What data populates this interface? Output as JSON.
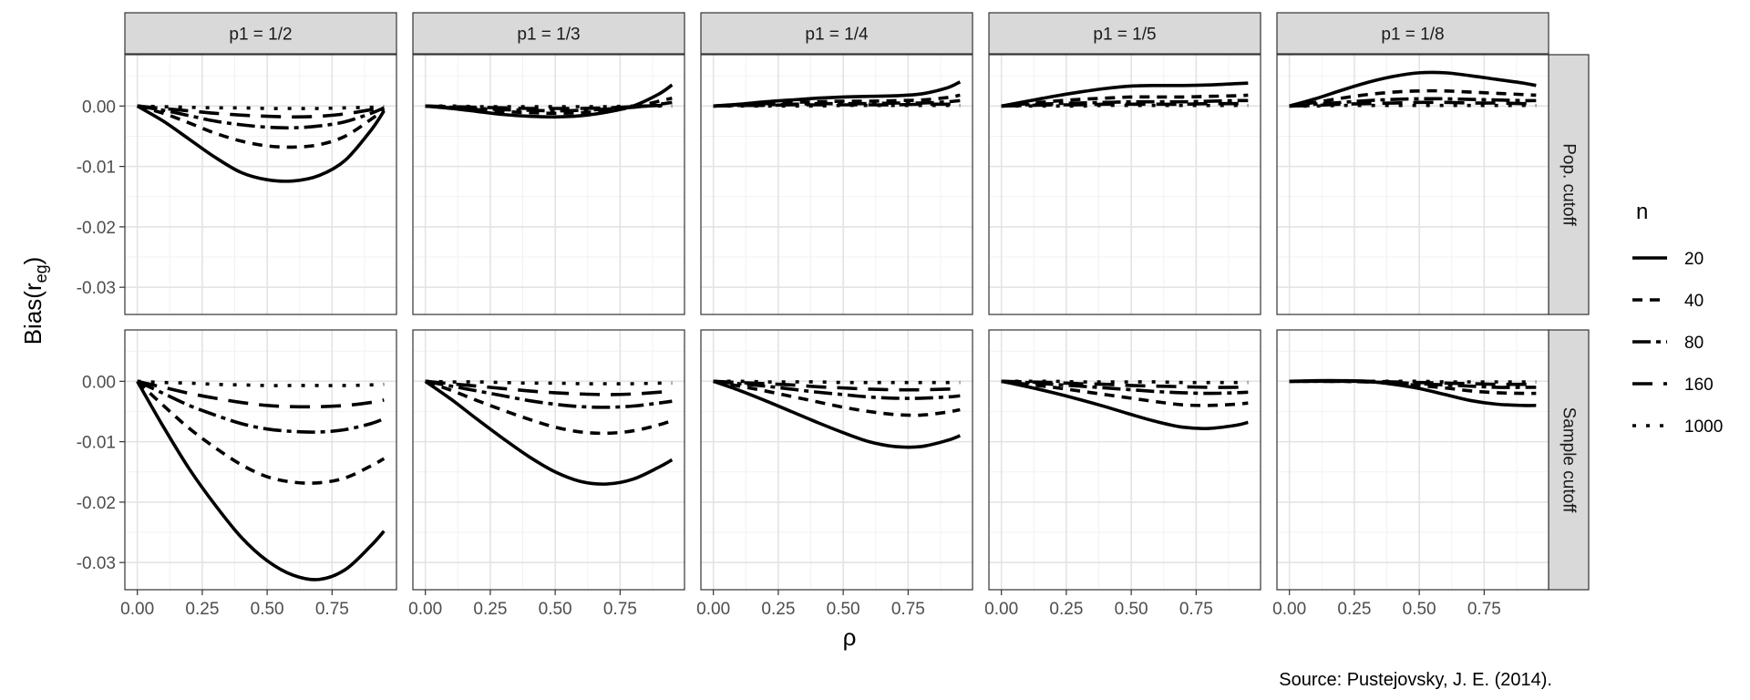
{
  "chart_data": {
    "type": "line",
    "xlabel": "ρ",
    "ylabel_main": "Bias(r",
    "ylabel_sub": "eg",
    "ylabel_close": ")",
    "caption": "Source: Pustejovsky, J. E. (2014).",
    "x_ticks": [
      0,
      0.25,
      0.5,
      0.75
    ],
    "x_tick_labels": [
      "0.00",
      "0.25",
      "0.50",
      "0.75"
    ],
    "y_ticks": [
      0,
      -0.01,
      -0.02,
      -0.03
    ],
    "y_tick_labels": [
      "0.00",
      "-0.01",
      "-0.02",
      "-0.03"
    ],
    "xlim": [
      -0.048,
      0.998
    ],
    "ylim_top": [
      -0.0345,
      0.0085
    ],
    "ylim_bottom": [
      -0.0345,
      0.0085
    ],
    "grid": true,
    "legend_position": "right",
    "legend": {
      "title": "n",
      "entries": [
        {
          "label": "20",
          "dash": "solid"
        },
        {
          "label": "40",
          "dash": "short-dash"
        },
        {
          "label": "80",
          "dash": "dash-dot"
        },
        {
          "label": "160",
          "dash": "long-dash"
        },
        {
          "label": "1000",
          "dash": "dotted"
        }
      ]
    },
    "columns": [
      "p1 = 1/2",
      "p1 = 1/3",
      "p1 = 1/4",
      "p1 = 1/5",
      "p1 = 1/8"
    ],
    "rows": [
      "Pop. cutoff",
      "Sample cutoff"
    ],
    "x": [
      0,
      0.1,
      0.2,
      0.3,
      0.4,
      0.5,
      0.6,
      0.7,
      0.8,
      0.9,
      0.95
    ],
    "panels": [
      {
        "row": "Pop. cutoff",
        "column": "p1 = 1/2",
        "series": [
          {
            "name": "20",
            "values": [
              0,
              -0.0025,
              -0.0055,
              -0.0085,
              -0.011,
              -0.0122,
              -0.0124,
              -0.0115,
              -0.009,
              -0.004,
              -0.0008
            ]
          },
          {
            "name": "40",
            "values": [
              0,
              -0.0012,
              -0.0028,
              -0.0045,
              -0.0058,
              -0.0066,
              -0.0068,
              -0.0064,
              -0.005,
              -0.0022,
              -0.0005
            ]
          },
          {
            "name": "80",
            "values": [
              0,
              -0.0007,
              -0.0016,
              -0.0025,
              -0.0031,
              -0.0035,
              -0.0036,
              -0.0033,
              -0.0026,
              -0.0012,
              -0.0003
            ]
          },
          {
            "name": "160",
            "values": [
              0,
              -0.0004,
              -0.0008,
              -0.0012,
              -0.0015,
              -0.0017,
              -0.0018,
              -0.0017,
              -0.0013,
              -0.0006,
              -0.0002
            ]
          },
          {
            "name": "1000",
            "values": [
              0,
              -0.0001,
              -0.0002,
              -0.0003,
              -0.0003,
              -0.0004,
              -0.0004,
              -0.0004,
              -0.0003,
              -0.0002,
              -0.0001
            ]
          }
        ]
      },
      {
        "row": "Pop. cutoff",
        "column": "p1 = 1/3",
        "series": [
          {
            "name": "20",
            "values": [
              0,
              -0.0004,
              -0.0009,
              -0.0014,
              -0.0017,
              -0.0018,
              -0.0016,
              -0.001,
              0.0,
              0.002,
              0.0035
            ]
          },
          {
            "name": "40",
            "values": [
              0,
              -0.0003,
              -0.0006,
              -0.0009,
              -0.0011,
              -0.0012,
              -0.0011,
              -0.0008,
              -0.0002,
              0.0008,
              0.0013
            ]
          },
          {
            "name": "80",
            "values": [
              0,
              -0.0002,
              -0.0004,
              -0.0006,
              -0.0007,
              -0.0008,
              -0.0007,
              -0.0005,
              -0.0002,
              0.0003,
              0.0006
            ]
          },
          {
            "name": "160",
            "values": [
              0,
              -0.0001,
              -0.0002,
              -0.0003,
              -0.0004,
              -0.0004,
              -0.0004,
              -0.0003,
              -0.0001,
              0.0001,
              0.0002
            ]
          },
          {
            "name": "1000",
            "values": [
              0,
              0,
              -0.0001,
              -0.0001,
              -0.0001,
              -0.0001,
              -0.0001,
              -0.0001,
              0,
              0,
              0
            ]
          }
        ]
      },
      {
        "row": "Pop. cutoff",
        "column": "p1 = 1/4",
        "series": [
          {
            "name": "20",
            "values": [
              0,
              0.0003,
              0.0007,
              0.001,
              0.0013,
              0.0015,
              0.0016,
              0.0017,
              0.002,
              0.003,
              0.004
            ]
          },
          {
            "name": "40",
            "values": [
              0,
              0.0002,
              0.0004,
              0.0006,
              0.0007,
              0.0008,
              0.0008,
              0.0009,
              0.001,
              0.0014,
              0.0018
            ]
          },
          {
            "name": "80",
            "values": [
              0,
              0.0001,
              0.0002,
              0.0003,
              0.0004,
              0.0004,
              0.0004,
              0.0005,
              0.0005,
              0.0007,
              0.0009
            ]
          },
          {
            "name": "160",
            "values": [
              0,
              0.0001,
              0.0001,
              0.0002,
              0.0002,
              0.0002,
              0.0002,
              0.0002,
              0.0003,
              0.0003,
              0.0004
            ]
          },
          {
            "name": "1000",
            "values": [
              0,
              0,
              0,
              0,
              0,
              0.0001,
              0.0001,
              0.0001,
              0.0001,
              0.0001,
              0.0001
            ]
          }
        ]
      },
      {
        "row": "Pop. cutoff",
        "column": "p1 = 1/5",
        "series": [
          {
            "name": "20",
            "values": [
              0,
              0.0008,
              0.0016,
              0.0023,
              0.0029,
              0.0033,
              0.0034,
              0.0034,
              0.0035,
              0.0037,
              0.0038
            ]
          },
          {
            "name": "40",
            "values": [
              0,
              0.0004,
              0.0008,
              0.0011,
              0.0013,
              0.0015,
              0.0015,
              0.0015,
              0.0016,
              0.0017,
              0.0018
            ]
          },
          {
            "name": "80",
            "values": [
              0,
              0.0002,
              0.0004,
              0.0005,
              0.0006,
              0.0007,
              0.0007,
              0.0007,
              0.0008,
              0.0009,
              0.0009
            ]
          },
          {
            "name": "160",
            "values": [
              0,
              0.0001,
              0.0002,
              0.0002,
              0.0003,
              0.0003,
              0.0003,
              0.0003,
              0.0004,
              0.0004,
              0.0004
            ]
          },
          {
            "name": "1000",
            "values": [
              0,
              0,
              0,
              0,
              0.0001,
              0.0001,
              0.0001,
              0.0001,
              0.0001,
              0.0001,
              0.0001
            ]
          }
        ]
      },
      {
        "row": "Pop. cutoff",
        "column": "p1 = 1/8",
        "series": [
          {
            "name": "20",
            "values": [
              0,
              0.0012,
              0.0026,
              0.0039,
              0.0049,
              0.0055,
              0.0055,
              0.005,
              0.0044,
              0.0038,
              0.0034
            ]
          },
          {
            "name": "40",
            "values": [
              0,
              0.0006,
              0.0013,
              0.0019,
              0.0023,
              0.0025,
              0.0025,
              0.0023,
              0.0021,
              0.0019,
              0.0018
            ]
          },
          {
            "name": "80",
            "values": [
              0,
              0.0003,
              0.0006,
              0.0009,
              0.0011,
              0.0012,
              0.0012,
              0.0011,
              0.001,
              0.0009,
              0.0009
            ]
          },
          {
            "name": "160",
            "values": [
              0,
              0.0001,
              0.0003,
              0.0004,
              0.0005,
              0.0006,
              0.0006,
              0.0005,
              0.0005,
              0.0004,
              0.0004
            ]
          },
          {
            "name": "1000",
            "values": [
              0,
              0,
              0.0001,
              0.0001,
              0.0001,
              0.0001,
              0.0001,
              0.0001,
              0.0001,
              0.0001,
              0.0001
            ]
          }
        ]
      },
      {
        "row": "Sample cutoff",
        "column": "p1 = 1/2",
        "series": [
          {
            "name": "20",
            "values": [
              0,
              -0.0075,
              -0.0145,
              -0.0205,
              -0.0258,
              -0.0297,
              -0.0321,
              -0.0328,
              -0.0312,
              -0.0272,
              -0.0248
            ]
          },
          {
            "name": "40",
            "values": [
              0,
              -0.004,
              -0.0078,
              -0.011,
              -0.0138,
              -0.0158,
              -0.0167,
              -0.0168,
              -0.016,
              -0.014,
              -0.0128
            ]
          },
          {
            "name": "80",
            "values": [
              0,
              -0.002,
              -0.004,
              -0.0056,
              -0.007,
              -0.0079,
              -0.0083,
              -0.0084,
              -0.008,
              -0.007,
              -0.0062
            ]
          },
          {
            "name": "160",
            "values": [
              0,
              -0.001,
              -0.002,
              -0.0028,
              -0.0035,
              -0.004,
              -0.0042,
              -0.0042,
              -0.004,
              -0.0035,
              -0.0031
            ]
          },
          {
            "name": "1000",
            "values": [
              0,
              -0.0002,
              -0.0003,
              -0.0005,
              -0.0006,
              -0.0007,
              -0.0007,
              -0.0007,
              -0.0007,
              -0.0006,
              -0.0005
            ]
          }
        ]
      },
      {
        "row": "Sample cutoff",
        "column": "p1 = 1/3",
        "series": [
          {
            "name": "20",
            "values": [
              0,
              -0.003,
              -0.0063,
              -0.0095,
              -0.0125,
              -0.015,
              -0.0166,
              -0.017,
              -0.0162,
              -0.0142,
              -0.013
            ]
          },
          {
            "name": "40",
            "values": [
              0,
              -0.0015,
              -0.0032,
              -0.0048,
              -0.0063,
              -0.0076,
              -0.0084,
              -0.0086,
              -0.0082,
              -0.0072,
              -0.0065
            ]
          },
          {
            "name": "80",
            "values": [
              0,
              -0.0008,
              -0.0016,
              -0.0024,
              -0.0032,
              -0.0038,
              -0.0042,
              -0.0043,
              -0.0041,
              -0.0036,
              -0.0033
            ]
          },
          {
            "name": "160",
            "values": [
              0,
              -0.0004,
              -0.0008,
              -0.0012,
              -0.0016,
              -0.0019,
              -0.0021,
              -0.0022,
              -0.0021,
              -0.0018,
              -0.0016
            ]
          },
          {
            "name": "1000",
            "values": [
              0,
              -0.0001,
              -0.0001,
              -0.0002,
              -0.0003,
              -0.0003,
              -0.0004,
              -0.0004,
              -0.0004,
              -0.0003,
              -0.0003
            ]
          }
        ]
      },
      {
        "row": "Sample cutoff",
        "column": "p1 = 1/4",
        "series": [
          {
            "name": "20",
            "values": [
              0,
              -0.0015,
              -0.0032,
              -0.005,
              -0.0068,
              -0.0085,
              -0.01,
              -0.0108,
              -0.0108,
              -0.0098,
              -0.009
            ]
          },
          {
            "name": "40",
            "values": [
              0,
              -0.0008,
              -0.0016,
              -0.0025,
              -0.0034,
              -0.0043,
              -0.005,
              -0.0055,
              -0.0056,
              -0.0051,
              -0.0047
            ]
          },
          {
            "name": "80",
            "values": [
              0,
              -0.0004,
              -0.0008,
              -0.0013,
              -0.0018,
              -0.0022,
              -0.0026,
              -0.0028,
              -0.0028,
              -0.0026,
              -0.0024
            ]
          },
          {
            "name": "160",
            "values": [
              0,
              -0.0002,
              -0.0004,
              -0.0006,
              -0.0009,
              -0.0011,
              -0.0013,
              -0.0014,
              -0.0014,
              -0.0013,
              -0.0012
            ]
          },
          {
            "name": "1000",
            "values": [
              0,
              0,
              -0.0001,
              -0.0001,
              -0.0001,
              -0.0002,
              -0.0002,
              -0.0002,
              -0.0002,
              -0.0002,
              -0.0002
            ]
          }
        ]
      },
      {
        "row": "Sample cutoff",
        "column": "p1 = 1/5",
        "series": [
          {
            "name": "20",
            "values": [
              0,
              -0.0009,
              -0.0019,
              -0.003,
              -0.0042,
              -0.0055,
              -0.0067,
              -0.0076,
              -0.0078,
              -0.0073,
              -0.0068
            ]
          },
          {
            "name": "40",
            "values": [
              0,
              -0.0005,
              -0.001,
              -0.0016,
              -0.0022,
              -0.0028,
              -0.0034,
              -0.0039,
              -0.004,
              -0.0038,
              -0.0036
            ]
          },
          {
            "name": "80",
            "values": [
              0,
              -0.0002,
              -0.0005,
              -0.0008,
              -0.0011,
              -0.0014,
              -0.0017,
              -0.0019,
              -0.002,
              -0.0019,
              -0.0018
            ]
          },
          {
            "name": "160",
            "values": [
              0,
              -0.0001,
              -0.0002,
              -0.0004,
              -0.0005,
              -0.0007,
              -0.0008,
              -0.0009,
              -0.001,
              -0.001,
              -0.0009
            ]
          },
          {
            "name": "1000",
            "values": [
              0,
              0,
              0,
              -0.0001,
              -0.0001,
              -0.0001,
              -0.0001,
              -0.0002,
              -0.0002,
              -0.0002,
              -0.0002
            ]
          }
        ]
      },
      {
        "row": "Sample cutoff",
        "column": "p1 = 1/8",
        "series": [
          {
            "name": "20",
            "values": [
              0,
              0.0001,
              0.0001,
              0.0,
              -0.0005,
              -0.0012,
              -0.0022,
              -0.0032,
              -0.0038,
              -0.004,
              -0.004
            ]
          },
          {
            "name": "40",
            "values": [
              0,
              0.0,
              0.0,
              -0.0001,
              -0.0003,
              -0.0007,
              -0.0011,
              -0.0016,
              -0.0019,
              -0.002,
              -0.002
            ]
          },
          {
            "name": "80",
            "values": [
              0,
              0,
              0,
              -0.0001,
              -0.0002,
              -0.0004,
              -0.0006,
              -0.0008,
              -0.001,
              -0.001,
              -0.001
            ]
          },
          {
            "name": "160",
            "values": [
              0,
              0,
              0,
              0,
              -0.0001,
              -0.0002,
              -0.0003,
              -0.0004,
              -0.0005,
              -0.0005,
              -0.0005
            ]
          },
          {
            "name": "1000",
            "values": [
              0,
              0,
              0,
              0,
              0,
              0,
              -0.0001,
              -0.0001,
              -0.0001,
              -0.0001,
              -0.0001
            ]
          }
        ]
      }
    ]
  }
}
